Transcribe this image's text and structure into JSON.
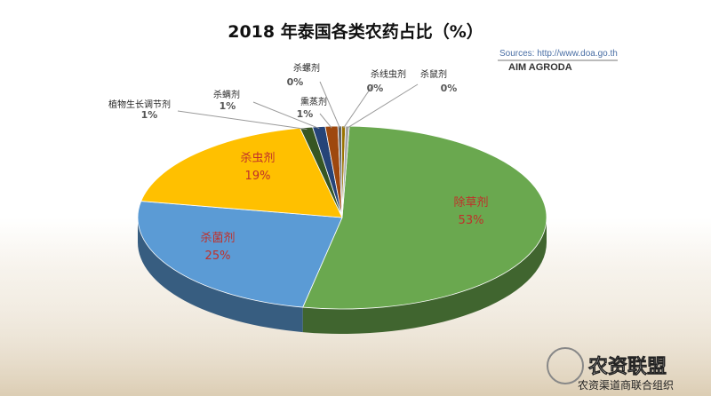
{
  "chart_data": {
    "type": "pie",
    "title": "2018 年泰国各类农药占比（%）",
    "source": "Sources: http://www.doa.go.th",
    "brand": "AIM AGRODA",
    "categories": [
      "除草剂",
      "杀菌剂",
      "杀虫剂",
      "植物生长调节剂",
      "杀螨剂",
      "熏蒸剂",
      "杀螺剂",
      "杀线虫剂",
      "杀鼠剂"
    ],
    "values": [
      53,
      25,
      19,
      1,
      1,
      1,
      0,
      0,
      0
    ],
    "value_labels": [
      "53%",
      "25%",
      "19%",
      "1%",
      "1%",
      "1%",
      "0%",
      "0%",
      "0%"
    ],
    "colors": [
      "#6aa84f",
      "#5b9bd5",
      "#ffc000",
      "#375623",
      "#264478",
      "#9e480e",
      "#636363",
      "#997300",
      "#a5a5a5"
    ],
    "legend": "none"
  },
  "watermark": {
    "main": "农资联盟",
    "sub": "农资渠道商联合组织"
  }
}
